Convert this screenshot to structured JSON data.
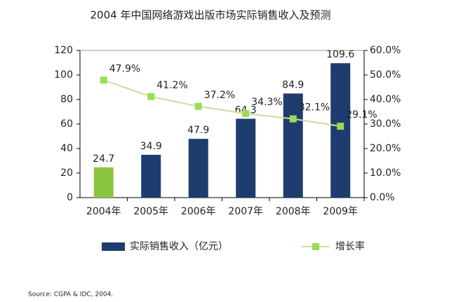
{
  "chart_data": {
    "type": "bar-line",
    "title": "2004 年中国网络游戏出版市场实际销售收入及预测",
    "categories": [
      "2004年",
      "2005年",
      "2006年",
      "2007年",
      "2008年",
      "2009年"
    ],
    "series": [
      {
        "name": "实际销售收入（亿元）",
        "color": "#1f3c6e",
        "colors": [
          "#8cc63f",
          "#1f3c6e",
          "#1f3c6e",
          "#1f3c6e",
          "#1f3c6e",
          "#1f3c6e"
        ],
        "values": [
          24.7,
          34.9,
          47.9,
          64.3,
          84.9,
          109.6
        ]
      },
      {
        "name": "增长率",
        "color": "#d8d89a",
        "marker_color": "#99dd55",
        "axis": "y2",
        "values": [
          47.9,
          41.2,
          37.2,
          34.3,
          32.1,
          29.1
        ],
        "value_labels": [
          "47.9%",
          "41.2%",
          "37.2%",
          "34.3%",
          "32.1%",
          "29.1%"
        ]
      }
    ],
    "ylim": [
      0,
      120
    ],
    "yticks": [
      0,
      20,
      40,
      60,
      80,
      100,
      120
    ],
    "y2lim": [
      0,
      60
    ],
    "y2ticks": [
      {
        "value": 0,
        "label": "0.0%"
      },
      {
        "value": 10,
        "label": "10.0%"
      },
      {
        "value": 20,
        "label": "20.0%"
      },
      {
        "value": 30,
        "label": "30.0%"
      },
      {
        "value": 40,
        "label": "40.0%"
      },
      {
        "value": 50,
        "label": "50.0%"
      },
      {
        "value": 60,
        "label": "60.0%"
      }
    ],
    "source": "Source: CGPA & IDC, 2004."
  }
}
